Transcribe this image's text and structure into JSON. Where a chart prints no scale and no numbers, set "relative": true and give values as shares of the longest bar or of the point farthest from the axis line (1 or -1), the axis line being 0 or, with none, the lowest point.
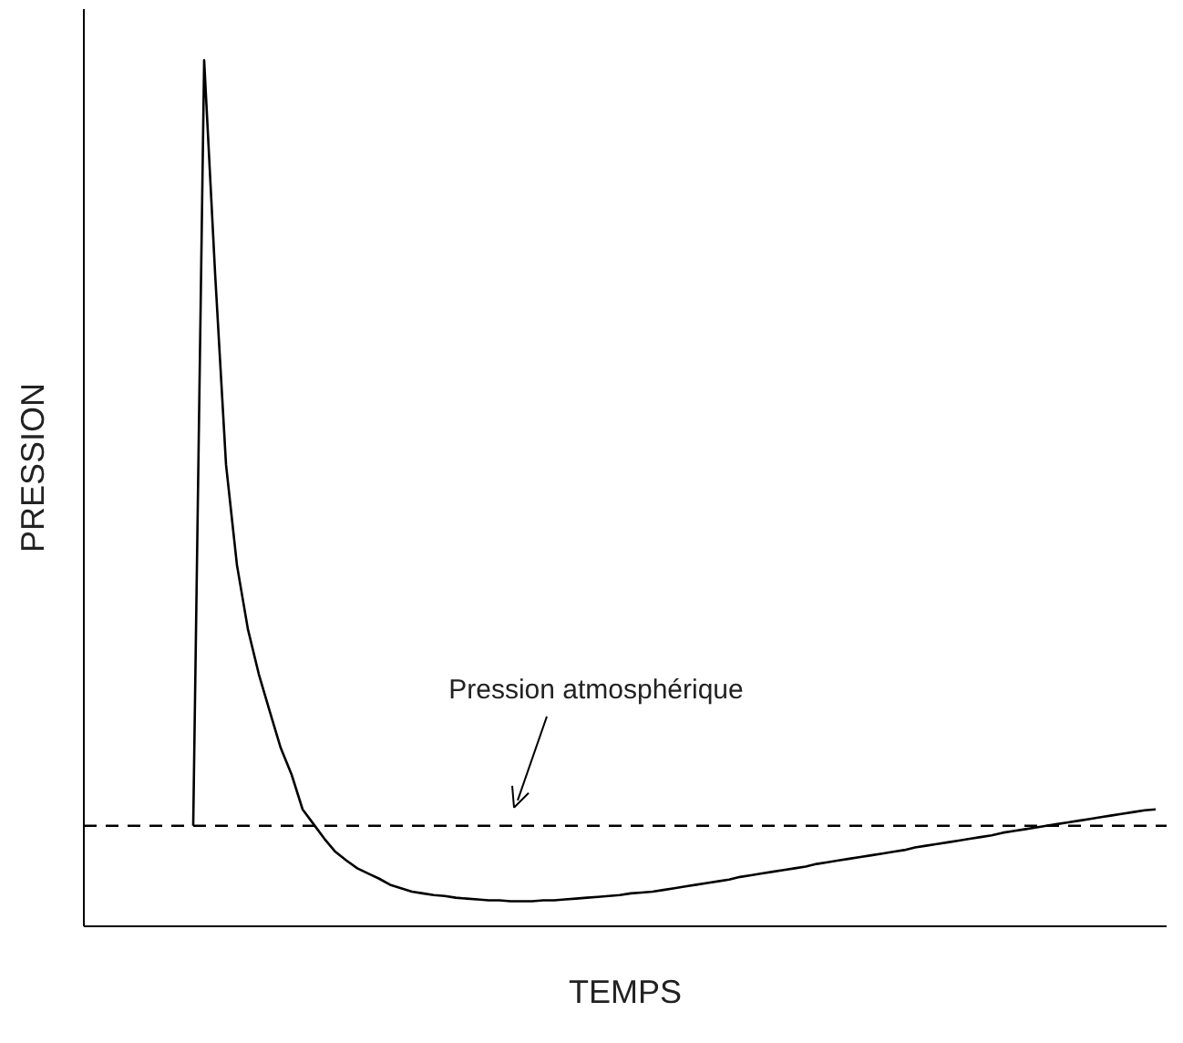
{
  "chart_data": {
    "type": "line",
    "xlabel": "TEMPS",
    "ylabel": "PRESSION",
    "relative": true,
    "categories": [
      null,
      null,
      null,
      null,
      null,
      null,
      null,
      null,
      null,
      null,
      null,
      null,
      null,
      null,
      null,
      null,
      null,
      null,
      null,
      null,
      null,
      null,
      null,
      null,
      null,
      null,
      null,
      null,
      null,
      null,
      null,
      null,
      null,
      null,
      null,
      null,
      null,
      null,
      null,
      null,
      null,
      null,
      null,
      null,
      null,
      null,
      null,
      null,
      null,
      null,
      null,
      null,
      null,
      null,
      null,
      null,
      null,
      null,
      null,
      null,
      null,
      null,
      null,
      null,
      null,
      null,
      null,
      null,
      null,
      null,
      null,
      null,
      null,
      null,
      null,
      null,
      null,
      null,
      null,
      null,
      null,
      null,
      null,
      null,
      null,
      null,
      null,
      null,
      null,
      null,
      null,
      null,
      null,
      null,
      null,
      null,
      null,
      null,
      null,
      null
    ],
    "series": [
      {
        "color": "#000000",
        "values": [
          null,
          null,
          null,
          null,
          null,
          null,
          null,
          null,
          null,
          null,
          0.116,
          1.0,
          0.754,
          0.533,
          0.417,
          0.343,
          0.291,
          0.248,
          0.206,
          0.175,
          0.135,
          0.118,
          0.101,
          0.086,
          0.076,
          0.067,
          0.061,
          0.055,
          0.048,
          0.044,
          0.04,
          0.038,
          0.036,
          0.035,
          0.033,
          0.032,
          0.031,
          0.03,
          0.03,
          0.029,
          0.029,
          0.029,
          0.03,
          0.03,
          0.031,
          0.032,
          0.033,
          0.034,
          0.035,
          0.036,
          0.038,
          0.039,
          0.04,
          0.042,
          0.044,
          0.046,
          0.048,
          0.05,
          0.052,
          0.054,
          0.057,
          0.059,
          0.061,
          0.063,
          0.065,
          0.067,
          0.069,
          0.072,
          0.074,
          0.076,
          0.078,
          0.08,
          0.082,
          0.084,
          0.086,
          0.088,
          0.091,
          0.093,
          0.095,
          0.097,
          0.099,
          0.101,
          0.103,
          0.105,
          0.108,
          0.11,
          0.112,
          0.114,
          0.116,
          0.118,
          0.12,
          0.122,
          0.124,
          0.126,
          0.128,
          0.13,
          0.132,
          0.134,
          0.135,
          null
        ]
      }
    ],
    "ref_lines": [
      {
        "axis": "y",
        "value": 0.116,
        "label": "Pression atmosphérique",
        "line_style": "dashed",
        "color": "#000000"
      }
    ]
  }
}
